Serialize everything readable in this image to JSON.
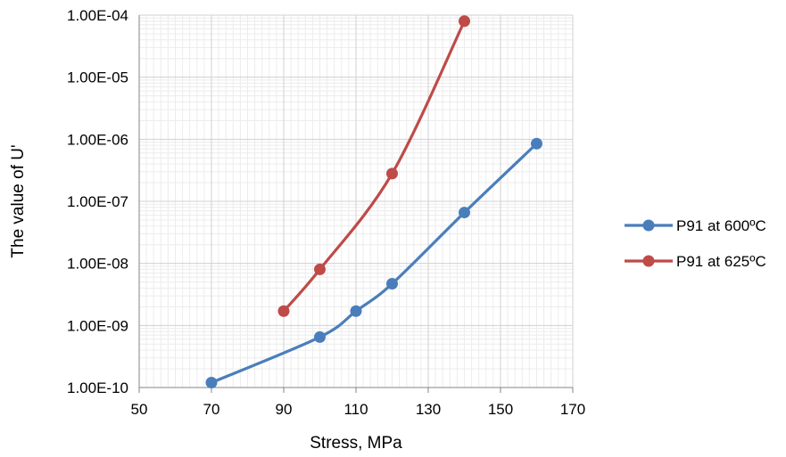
{
  "chart_data": {
    "type": "line",
    "title": "",
    "xlabel": "Stress, MPa",
    "ylabel": "The value of U'",
    "xlim": [
      50,
      170
    ],
    "x_ticks": [
      50,
      70,
      90,
      110,
      130,
      150,
      170
    ],
    "ylim": [
      1e-10,
      0.0001
    ],
    "y_scale": "log",
    "y_ticks": [
      1e-10,
      1e-09,
      1e-08,
      1e-07,
      1e-06,
      1e-05,
      0.0001
    ],
    "y_tick_labels": [
      "1.00E-10",
      "1.00E-09",
      "1.00E-08",
      "1.00E-07",
      "1.00E-06",
      "1.00E-05",
      "1.00E-04"
    ],
    "grid": true,
    "legend_position": "right",
    "series": [
      {
        "name": "P91 at 600ºC",
        "color": "#4a7ebb",
        "x": [
          70,
          100,
          110,
          120,
          140,
          160
        ],
        "y": [
          1.2e-10,
          6.5e-10,
          1.7e-09,
          4.7e-09,
          6.6e-08,
          8.5e-07
        ]
      },
      {
        "name": "P91 at 625ºC",
        "color": "#be4b48",
        "x": [
          90,
          100,
          120,
          140
        ],
        "y": [
          1.7e-09,
          8e-09,
          2.8e-07,
          8e-05
        ]
      }
    ]
  }
}
